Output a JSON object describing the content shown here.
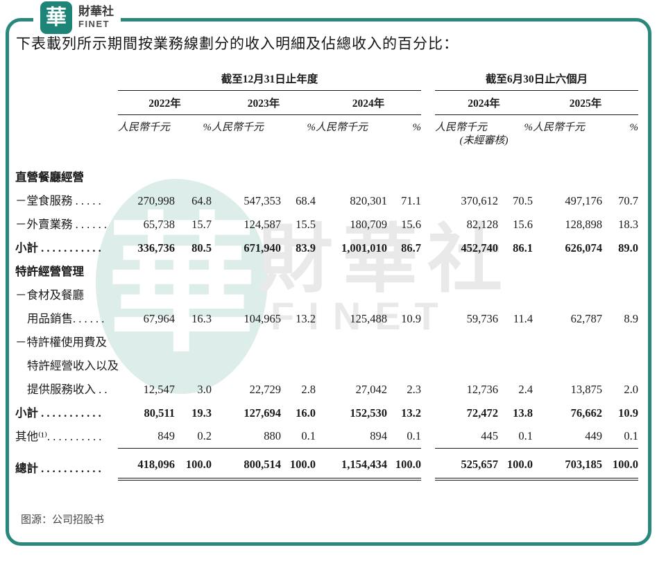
{
  "logo": {
    "mark": "華",
    "name": "財華社",
    "sub": "FINET"
  },
  "title": "下表載列所示期間按業務線劃分的收入明細及佔總收入的百分比：",
  "watermark": {
    "seal_char": "華",
    "text": "財華社",
    "subtext": "FINET"
  },
  "colors": {
    "frame_teal": "#2a877d",
    "logo_teal": "#1c8577",
    "seal_teal": "#dcedea",
    "text": "#1a1a1a",
    "watermark_gray": "#e9e9e9"
  },
  "table": {
    "group_headers": [
      {
        "label": "截至12月31日止年度"
      },
      {
        "label": "截至6月30日止六個月"
      }
    ],
    "periods": [
      {
        "year": "2022年",
        "unit": "人民幣千元",
        "pct": "%",
        "note": ""
      },
      {
        "year": "2023年",
        "unit": "人民幣千元",
        "pct": "%",
        "note": ""
      },
      {
        "year": "2024年",
        "unit": "人民幣千元",
        "pct": "%",
        "note": ""
      },
      {
        "year": "2024年",
        "unit": "人民幣千元",
        "pct": "%",
        "note": "(未經審核)"
      },
      {
        "year": "2025年",
        "unit": "人民幣千元",
        "pct": "%",
        "note": ""
      }
    ],
    "rows": [
      {
        "type": "section",
        "label": "直營餐廳經營"
      },
      {
        "type": "data",
        "bold": false,
        "label_lines": [
          "－堂食服務 . . . . ."
        ],
        "values": [
          "270,998",
          "64.8",
          "547,353",
          "68.4",
          "820,301",
          "71.1",
          "370,612",
          "70.5",
          "497,176",
          "70.7"
        ]
      },
      {
        "type": "data",
        "bold": false,
        "label_lines": [
          "－外賣業務 . . . . . ."
        ],
        "values": [
          "65,738",
          "15.7",
          "124,587",
          "15.5",
          "180,709",
          "15.6",
          "82,128",
          "15.6",
          "128,898",
          "18.3"
        ]
      },
      {
        "type": "data",
        "bold": true,
        "label_lines": [
          "小計 . . . . . . . . . . ."
        ],
        "values": [
          "336,736",
          "80.5",
          "671,940",
          "83.9",
          "1,001,010",
          "86.7",
          "452,740",
          "86.1",
          "626,074",
          "89.0"
        ]
      },
      {
        "type": "section",
        "label": "特許經營管理"
      },
      {
        "type": "data",
        "bold": false,
        "label_lines": [
          "－食材及餐廳",
          "用品銷售. . . . . ."
        ],
        "values": [
          "67,964",
          "16.3",
          "104,965",
          "13.2",
          "125,488",
          "10.9",
          "59,736",
          "11.4",
          "62,787",
          "8.9"
        ]
      },
      {
        "type": "data",
        "bold": false,
        "label_lines": [
          "－特許權使用費及",
          "特許經營收入以及",
          "提供服務收入 . ."
        ],
        "values": [
          "12,547",
          "3.0",
          "22,729",
          "2.8",
          "27,042",
          "2.3",
          "12,736",
          "2.4",
          "13,875",
          "2.0"
        ]
      },
      {
        "type": "data",
        "bold": true,
        "label_lines": [
          "小計 . . . . . . . . . . ."
        ],
        "values": [
          "80,511",
          "19.3",
          "127,694",
          "16.0",
          "152,530",
          "13.2",
          "72,472",
          "13.8",
          "76,662",
          "10.9"
        ]
      },
      {
        "type": "data",
        "bold": false,
        "underline": "single",
        "label_lines": [
          "其他⁽¹⁾. . . . . . . . . ."
        ],
        "values": [
          "849",
          "0.2",
          "880",
          "0.1",
          "894",
          "0.1",
          "445",
          "0.1",
          "449",
          "0.1"
        ]
      },
      {
        "type": "data",
        "bold": true,
        "underline": "double",
        "padtop": true,
        "label_lines": [
          "總計 . . . . . . . . . . ."
        ],
        "values": [
          "418,096",
          "100.0",
          "800,514",
          "100.0",
          "1,154,434",
          "100.0",
          "525,657",
          "100.0",
          "703,185",
          "100.0"
        ]
      }
    ]
  },
  "footer": {
    "source": "图源：公司招股书"
  }
}
